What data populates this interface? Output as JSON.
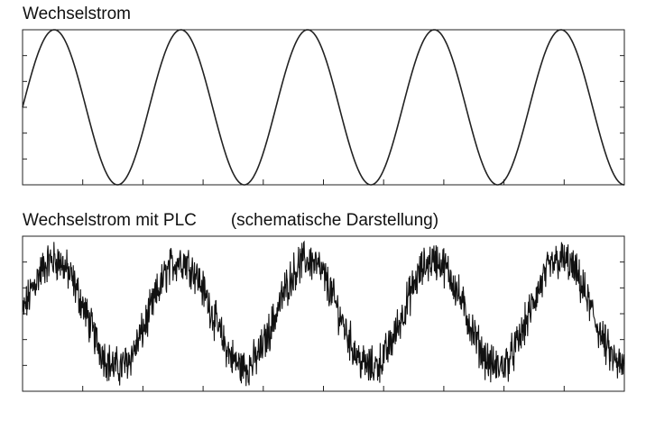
{
  "chart_data": [
    {
      "type": "line",
      "title": "Wechselstrom",
      "xlabel": "",
      "ylabel": "",
      "cycles": 4.75,
      "amplitude": 1.0,
      "ylim": [
        -1.0,
        1.0
      ],
      "x_ticks": 10,
      "y_ticks": 5,
      "grid": false,
      "color": "#222222"
    },
    {
      "type": "line",
      "title": "Wechselstrom mit PLC",
      "subtitle": "(schematische Darstellung)",
      "xlabel": "",
      "ylabel": "",
      "cycles": 4.75,
      "amplitude": 1.0,
      "noise_amplitude": 0.3,
      "ylim": [
        -1.45,
        1.45
      ],
      "x_ticks": 10,
      "y_ticks": 5,
      "grid": false,
      "color": "#111111"
    }
  ]
}
